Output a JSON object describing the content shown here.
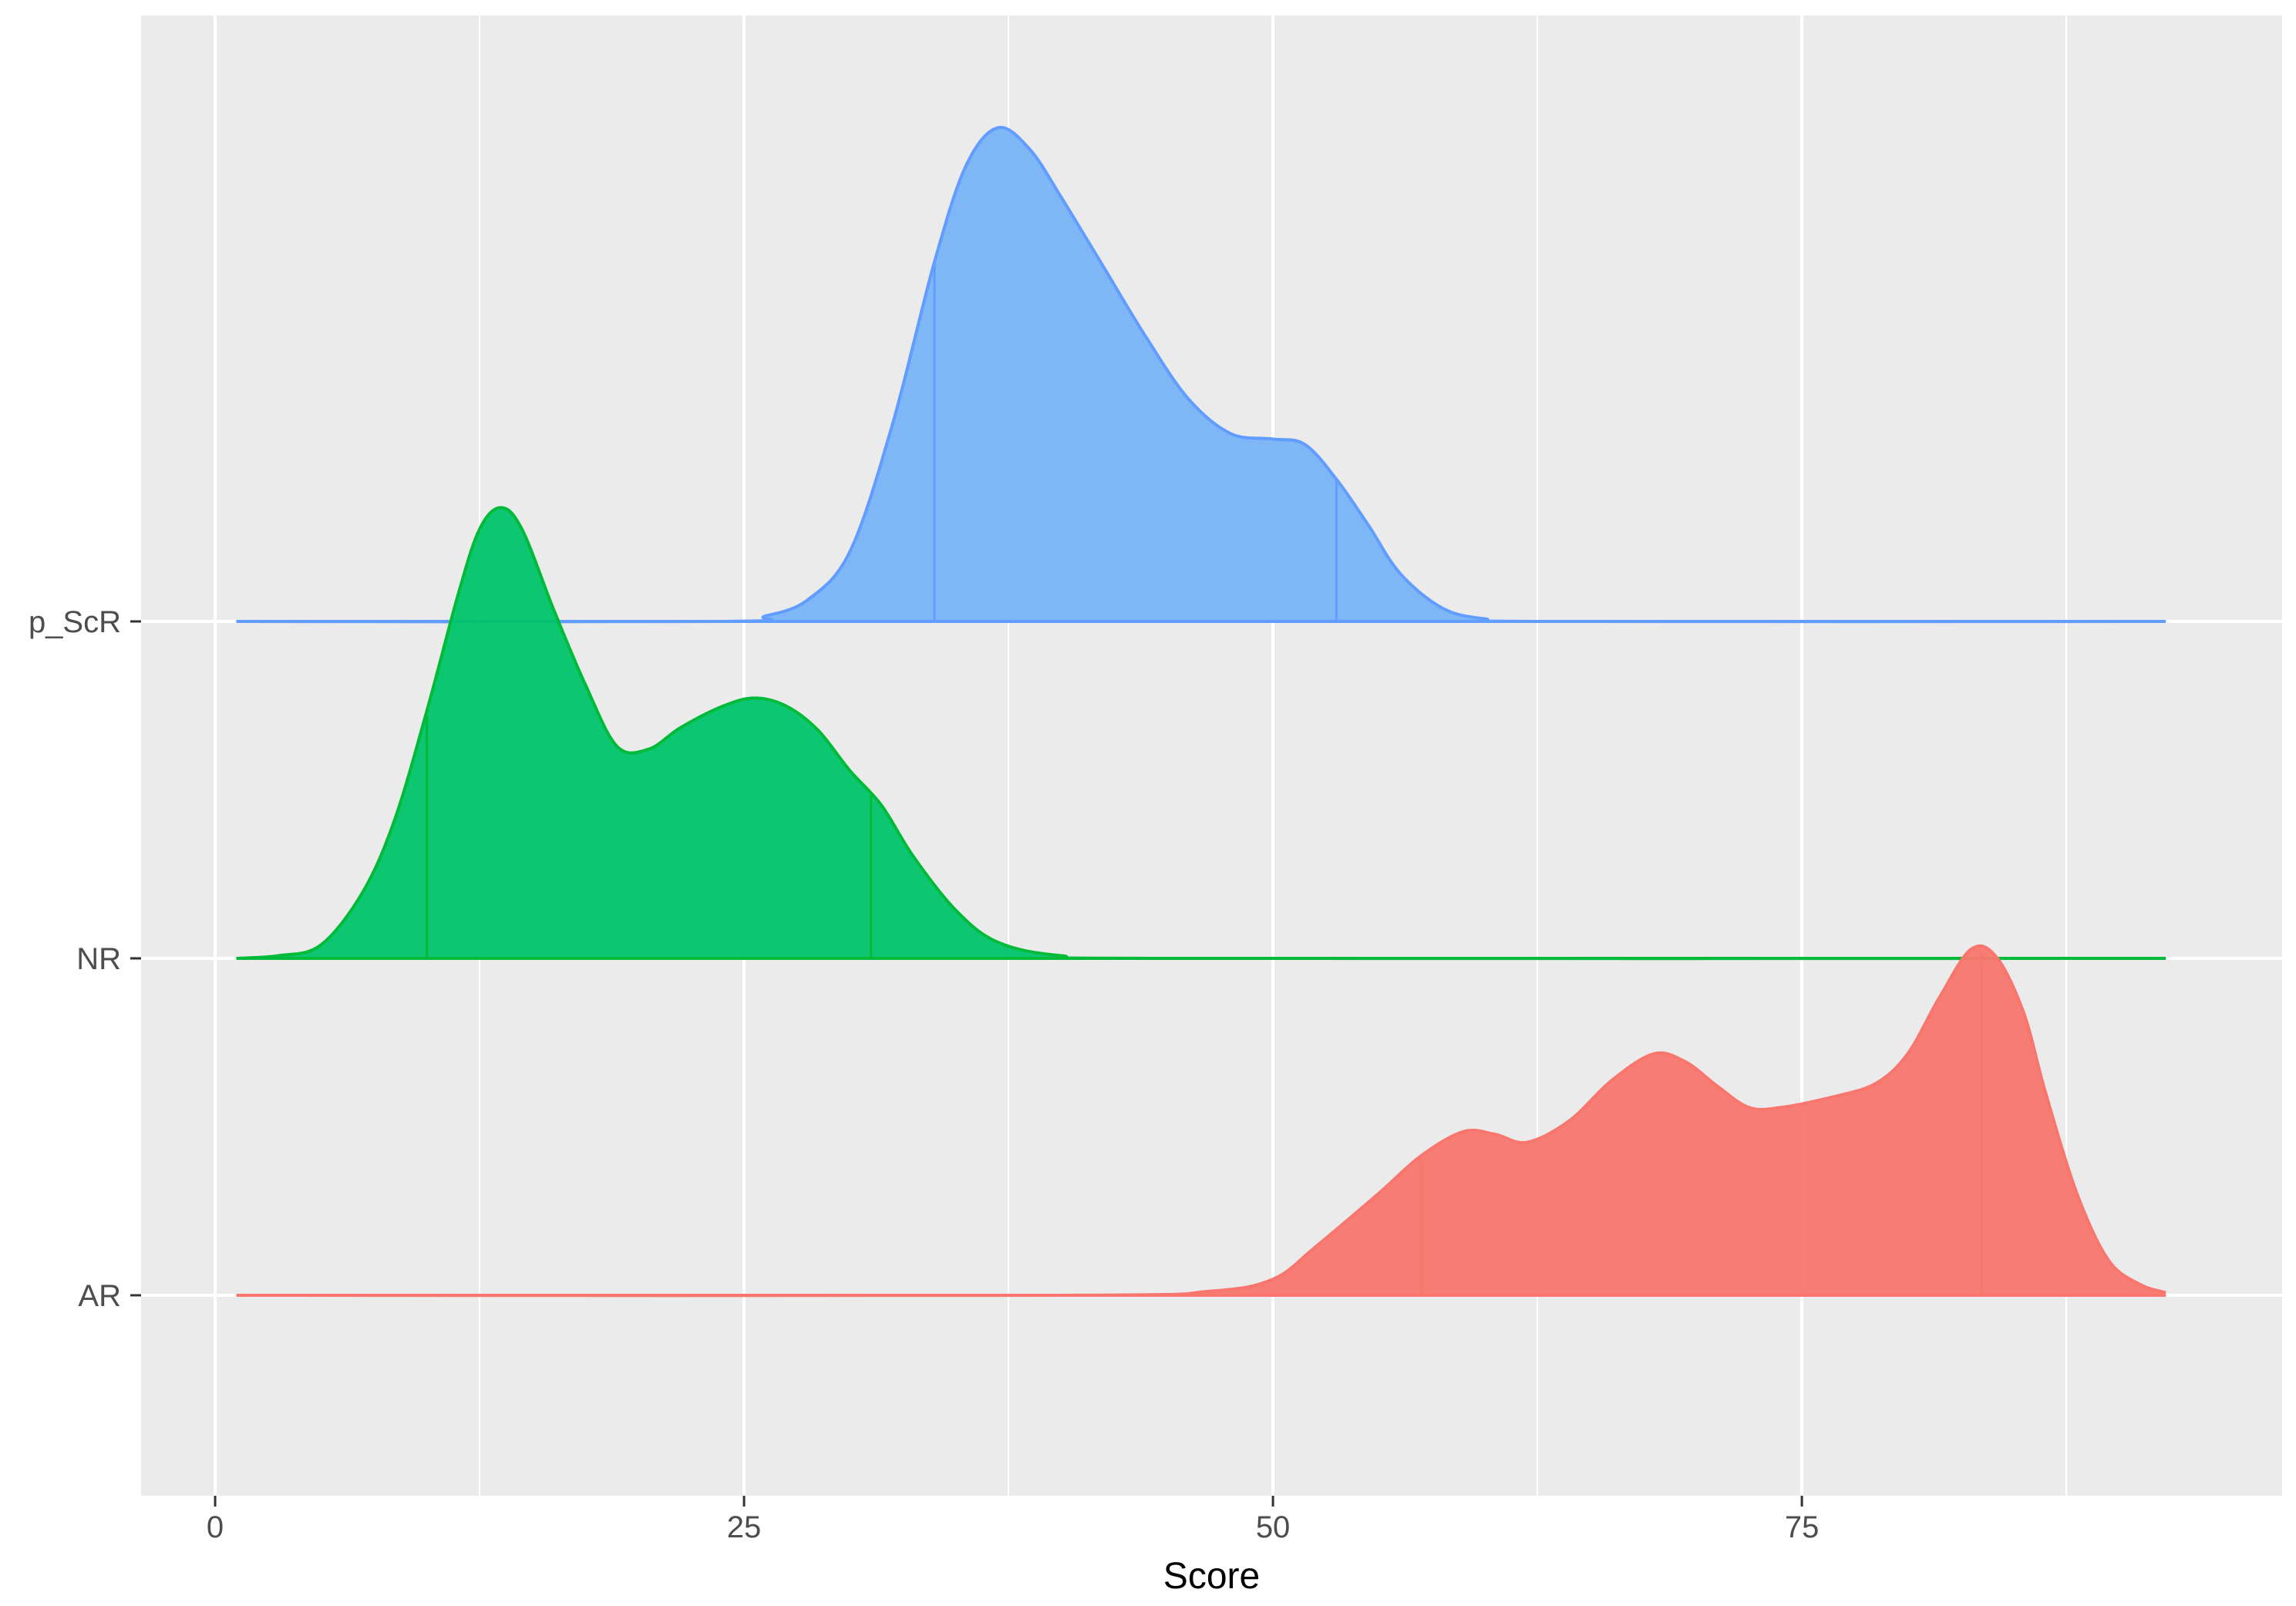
{
  "chart_data": {
    "type": "ridgeline",
    "title": "",
    "xlabel": "Score",
    "ylabel": "",
    "xlim": [
      -3.5,
      97.7
    ],
    "x_ticks": [
      0,
      25,
      50,
      75
    ],
    "x_tick_labels": [
      "0",
      "25",
      "50",
      "75"
    ],
    "categories": [
      "AR",
      "NR",
      "p_ScR"
    ],
    "grid": true,
    "legend": "none",
    "panel_background": "#ebebeb",
    "grid_color": "#ffffff",
    "series": [
      {
        "name": "AR",
        "fill": "#f8766d",
        "line": "#f8766d",
        "quantiles": [
          57,
          83.5
        ],
        "points": [
          [
            1,
            0
          ],
          [
            40,
            0
          ],
          [
            47,
            0.015
          ],
          [
            50,
            0.06
          ],
          [
            52,
            0.18
          ],
          [
            55,
            0.38
          ],
          [
            57,
            0.52
          ],
          [
            59,
            0.61
          ],
          [
            60.5,
            0.6
          ],
          [
            62,
            0.57
          ],
          [
            64,
            0.65
          ],
          [
            66,
            0.8
          ],
          [
            68,
            0.9
          ],
          [
            69.5,
            0.87
          ],
          [
            71,
            0.78
          ],
          [
            72.5,
            0.7
          ],
          [
            74,
            0.7
          ],
          [
            76.5,
            0.74
          ],
          [
            78.5,
            0.79
          ],
          [
            80,
            0.9
          ],
          [
            81.5,
            1.11
          ],
          [
            83,
            1.29
          ],
          [
            84.2,
            1.26
          ],
          [
            85.5,
            1.05
          ],
          [
            86.5,
            0.76
          ],
          [
            88,
            0.38
          ],
          [
            89.5,
            0.13
          ],
          [
            91,
            0.04
          ],
          [
            92.2,
            0.01
          ]
        ]
      },
      {
        "name": "NR",
        "fill": "#00c46a",
        "line": "#00ba38",
        "quantiles": [
          10,
          31
        ],
        "points": [
          [
            1,
            0
          ],
          [
            3,
            0.01
          ],
          [
            5,
            0.05
          ],
          [
            7,
            0.25
          ],
          [
            8.5,
            0.52
          ],
          [
            10,
            0.92
          ],
          [
            11.5,
            1.36
          ],
          [
            12.5,
            1.6
          ],
          [
            13.5,
            1.68
          ],
          [
            14.5,
            1.6
          ],
          [
            16,
            1.3
          ],
          [
            17.5,
            1.02
          ],
          [
            19,
            0.79
          ],
          [
            20.5,
            0.78
          ],
          [
            22,
            0.86
          ],
          [
            24,
            0.94
          ],
          [
            25.5,
            0.97
          ],
          [
            27,
            0.94
          ],
          [
            28.5,
            0.85
          ],
          [
            30,
            0.7
          ],
          [
            31.5,
            0.57
          ],
          [
            33,
            0.38
          ],
          [
            35,
            0.18
          ],
          [
            37,
            0.06
          ],
          [
            40,
            0.01
          ],
          [
            45,
            0
          ],
          [
            92.2,
            0
          ]
        ]
      },
      {
        "name": "p_ScR",
        "fill": "#78b3f7",
        "line": "#619cff",
        "quantiles": [
          34,
          53
        ],
        "points": [
          [
            1,
            0
          ],
          [
            24,
            0
          ],
          [
            26,
            0.02
          ],
          [
            28,
            0.08
          ],
          [
            30,
            0.26
          ],
          [
            32,
            0.73
          ],
          [
            34,
            1.34
          ],
          [
            35.5,
            1.7
          ],
          [
            37,
            1.84
          ],
          [
            38.5,
            1.76
          ],
          [
            40,
            1.58
          ],
          [
            42,
            1.32
          ],
          [
            44,
            1.06
          ],
          [
            46,
            0.83
          ],
          [
            48,
            0.7
          ],
          [
            50,
            0.68
          ],
          [
            51.5,
            0.66
          ],
          [
            53,
            0.53
          ],
          [
            54.5,
            0.36
          ],
          [
            56,
            0.18
          ],
          [
            58,
            0.05
          ],
          [
            60,
            0.01
          ],
          [
            63,
            0
          ],
          [
            92.2,
            0
          ]
        ]
      }
    ]
  }
}
